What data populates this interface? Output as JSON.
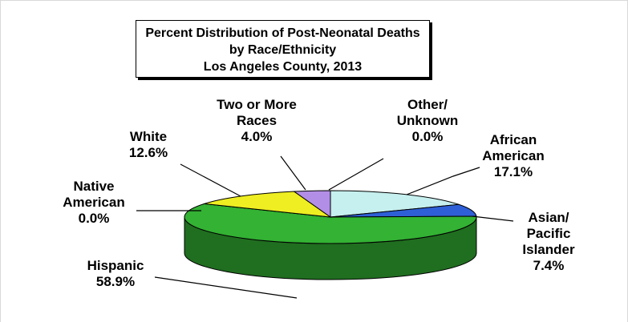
{
  "chart_data": {
    "type": "pie",
    "title": [
      "Percent Distribution of Post-Neonatal Deaths",
      "by Race/Ethnicity",
      "Los Angeles County, 2013"
    ],
    "slices": [
      {
        "label": [
          "Other/",
          "Unknown"
        ],
        "value_label": "0.0%",
        "value": 0.0,
        "color": "#a6a6a6"
      },
      {
        "label": [
          "African",
          "American"
        ],
        "value_label": "17.1%",
        "value": 17.1,
        "color": "#c6efef"
      },
      {
        "label": [
          "Asian/",
          "Pacific",
          "Islander"
        ],
        "value_label": "7.4%",
        "value": 7.4,
        "color": "#2e5fd6"
      },
      {
        "label": [
          "Hispanic"
        ],
        "value_label": "58.9%",
        "value": 58.9,
        "color": "#33b233"
      },
      {
        "label": [
          "Native",
          "American"
        ],
        "value_label": "0.0%",
        "value": 0.0,
        "color": "#777777"
      },
      {
        "label": [
          "White"
        ],
        "value_label": "12.6%",
        "value": 12.6,
        "color": "#eeee22"
      },
      {
        "label": [
          "Two or More",
          "Races"
        ],
        "value_label": "4.0%",
        "value": 4.0,
        "color": "#b38ee6"
      }
    ],
    "style": "3d"
  }
}
